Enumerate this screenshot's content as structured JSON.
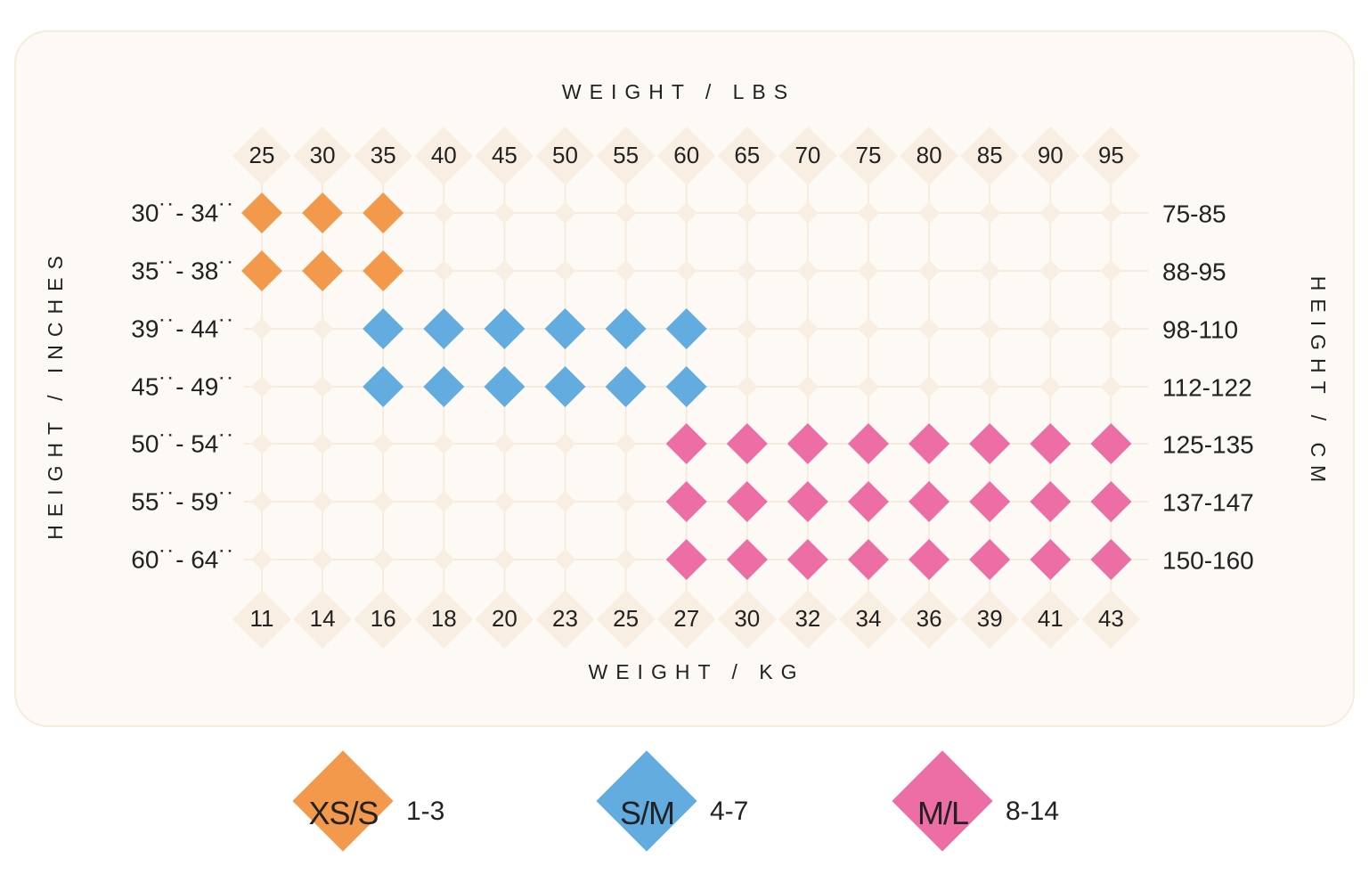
{
  "chart_data": {
    "type": "heatmap",
    "title": "",
    "top_axis_title": "WEIGHT / LBS",
    "bottom_axis_title": "WEIGHT / KG",
    "left_axis_title": "HEIGHT / INCHES",
    "right_axis_title": "HEIGHT / CM",
    "weight_lbs": [
      "25",
      "30",
      "35",
      "40",
      "45",
      "50",
      "55",
      "60",
      "65",
      "70",
      "75",
      "80",
      "85",
      "90",
      "95"
    ],
    "weight_kg": [
      "11",
      "14",
      "16",
      "18",
      "20",
      "23",
      "25",
      "27",
      "30",
      "32",
      "34",
      "36",
      "39",
      "41",
      "43"
    ],
    "height_inches": [
      "30˙˙- 34˙˙",
      "35˙˙- 38˙˙",
      "39˙˙- 44˙˙",
      "45˙˙- 49˙˙",
      "50˙˙- 54˙˙",
      "55˙˙- 59˙˙",
      "60˙˙- 64˙˙"
    ],
    "height_cm": [
      "75-85",
      "88-95",
      "98-110",
      "112-122",
      "125-135",
      "137-147",
      "150-160"
    ],
    "cells": [
      {
        "row": 0,
        "col_start": 0,
        "col_end": 2,
        "size": "XS/S"
      },
      {
        "row": 1,
        "col_start": 0,
        "col_end": 2,
        "size": "XS/S"
      },
      {
        "row": 2,
        "col_start": 2,
        "col_end": 7,
        "size": "S/M"
      },
      {
        "row": 3,
        "col_start": 2,
        "col_end": 7,
        "size": "S/M"
      },
      {
        "row": 4,
        "col_start": 7,
        "col_end": 14,
        "size": "M/L"
      },
      {
        "row": 5,
        "col_start": 7,
        "col_end": 14,
        "size": "M/L"
      },
      {
        "row": 6,
        "col_start": 7,
        "col_end": 14,
        "size": "M/L"
      }
    ]
  },
  "legend": [
    {
      "code": "XS/S",
      "range": "1-3",
      "color": "#f3994b"
    },
    {
      "code": "S/M",
      "range": "4-7",
      "color": "#62ace0"
    },
    {
      "code": "M/L",
      "range": "8-14",
      "color": "#ec6ea4"
    }
  ],
  "colors": {
    "panel_background": "#fdfaf5",
    "grid_line": "#f6ecdd",
    "empty_marker": "#f8efe2"
  }
}
